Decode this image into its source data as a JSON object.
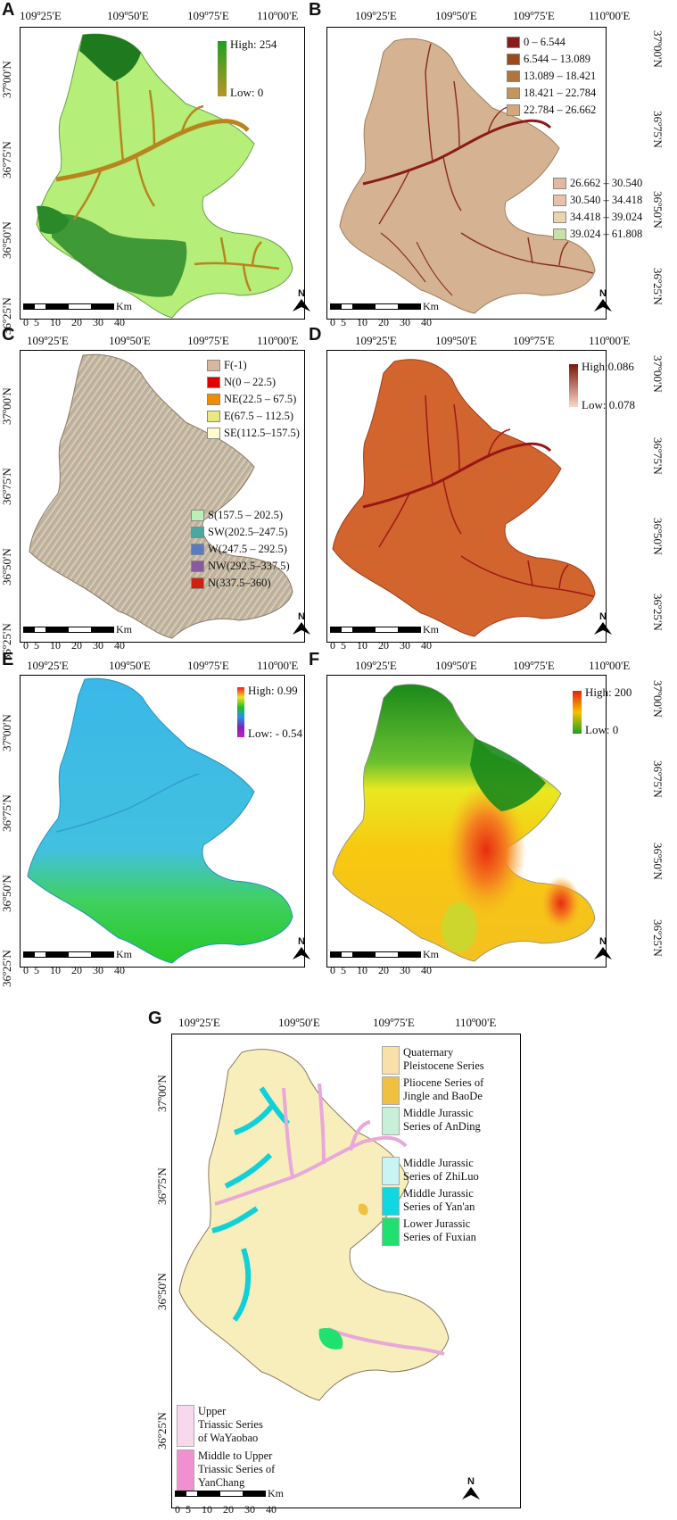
{
  "panels": {
    "A": {
      "letter": "A",
      "legend_high": "High: 254",
      "legend_low": "Low: 0",
      "colors": {
        "high": "#1f7a1f",
        "low": "#b8860b",
        "fill": "#b6ee7a",
        "stream": "#c0842a"
      }
    },
    "B": {
      "letter": "B",
      "classes": [
        {
          "label": "0 – 6.544",
          "color": "#8b1a1a"
        },
        {
          "label": "6.544 – 13.089",
          "color": "#9c4a1c"
        },
        {
          "label": "13.089 – 18.421",
          "color": "#b0743c"
        },
        {
          "label": "18.421 – 22.784",
          "color": "#c4955a"
        },
        {
          "label": "22.784 – 26.662",
          "color": "#d4a87a"
        },
        {
          "label": "26.662 – 30.540",
          "color": "#e2b8a0"
        },
        {
          "label": "30.540 – 34.418",
          "color": "#e9c0a8"
        },
        {
          "label": "34.418 – 39.024",
          "color": "#ead4b0"
        },
        {
          "label": "39.024 – 61.808",
          "color": "#c8e0a8"
        }
      ]
    },
    "C": {
      "letter": "C",
      "classes": [
        {
          "label": "F(-1)",
          "color": "#d8b89c"
        },
        {
          "label": "N(0 – 22.5)",
          "color": "#e00000"
        },
        {
          "label": "NE(22.5 – 67.5)",
          "color": "#f08c00"
        },
        {
          "label": "E(67.5 – 112.5)",
          "color": "#e8e880"
        },
        {
          "label": "SE(112.5–157.5)",
          "color": "#fffbd0"
        },
        {
          "label": "S(157.5 – 202.5)",
          "color": "#b8f0b8"
        },
        {
          "label": "SW(202.5–247.5)",
          "color": "#4aa8a0"
        },
        {
          "label": "W(247.5 – 292.5)",
          "color": "#5a7ac0"
        },
        {
          "label": "NW(292.5–337.5)",
          "color": "#8a5aa0"
        },
        {
          "label": "N(337.5–360)",
          "color": "#d02010"
        }
      ]
    },
    "D": {
      "letter": "D",
      "legend_high": "High:0.086",
      "legend_low": "Low: 0.078",
      "colors": {
        "fill": "#d0602a",
        "stream": "#a01818"
      }
    },
    "E": {
      "letter": "E",
      "legend_high": "High: 0.99",
      "legend_low": "Low: - 0.54",
      "colors": {
        "fill": "#3ab8e8",
        "south": "#40d040"
      }
    },
    "F": {
      "letter": "F",
      "legend_high": "High: 200",
      "legend_low": "Low: 0",
      "colors": {
        "north": "#1a8a1a",
        "mid": "#f0d000",
        "hot": "#e83010"
      }
    },
    "G": {
      "letter": "G",
      "classes_right": [
        {
          "label": "Quaternary Pleistocene Series",
          "lines": [
            "Quaternary",
            "Pleistocene Series"
          ],
          "color": "#f8e0a8"
        },
        {
          "label": "Pliocene Series of Jingle and BaoDe",
          "lines": [
            "Pliocene Series of",
            "Jingle and BaoDe"
          ],
          "color": "#f0c040"
        },
        {
          "label": "Middle Jurassic Series of AnDing",
          "lines": [
            "Middle  Jurassic",
            "Series of AnDing"
          ],
          "color": "#c8f0d8"
        },
        {
          "label": "Middle Jurassic Series of ZhiLuo",
          "lines": [
            "Middle  Jurassic",
            "Series of ZhiLuo"
          ],
          "color": "#c8f4f4"
        },
        {
          "label": "Middle Jurassic Series of Yan'an",
          "lines": [
            "Middle  Jurassic",
            "Series of Yan'an"
          ],
          "color": "#10d8e0"
        },
        {
          "label": "Lower Jurassic Series of Fuxian",
          "lines": [
            "Lower Jurassic",
            "Series of Fuxian"
          ],
          "color": "#20e070"
        }
      ],
      "classes_left": [
        {
          "label": "Upper Triassic Series of WaYaobao",
          "lines": [
            "Upper",
            "Triassic Series",
            "of WaYaobao"
          ],
          "color": "#f8d8ec"
        },
        {
          "label": "Middle to Upper Triassic Series of YanChang",
          "lines": [
            "Middle to Upper",
            "Triassic Series of",
            "YanChang"
          ],
          "color": "#f090d0"
        }
      ]
    }
  },
  "axes": {
    "lon_ticks": [
      "109º25'E",
      "109º50'E",
      "109º75'E",
      "110º00'E"
    ],
    "lat_ticks": [
      "37º00'N",
      "36º75'N",
      "36º50'N",
      "36º25'N"
    ]
  },
  "scalebar": {
    "unit": "Km",
    "ticks": [
      "0",
      "5",
      "10",
      "20",
      "30",
      "40"
    ]
  },
  "north_label": "N"
}
